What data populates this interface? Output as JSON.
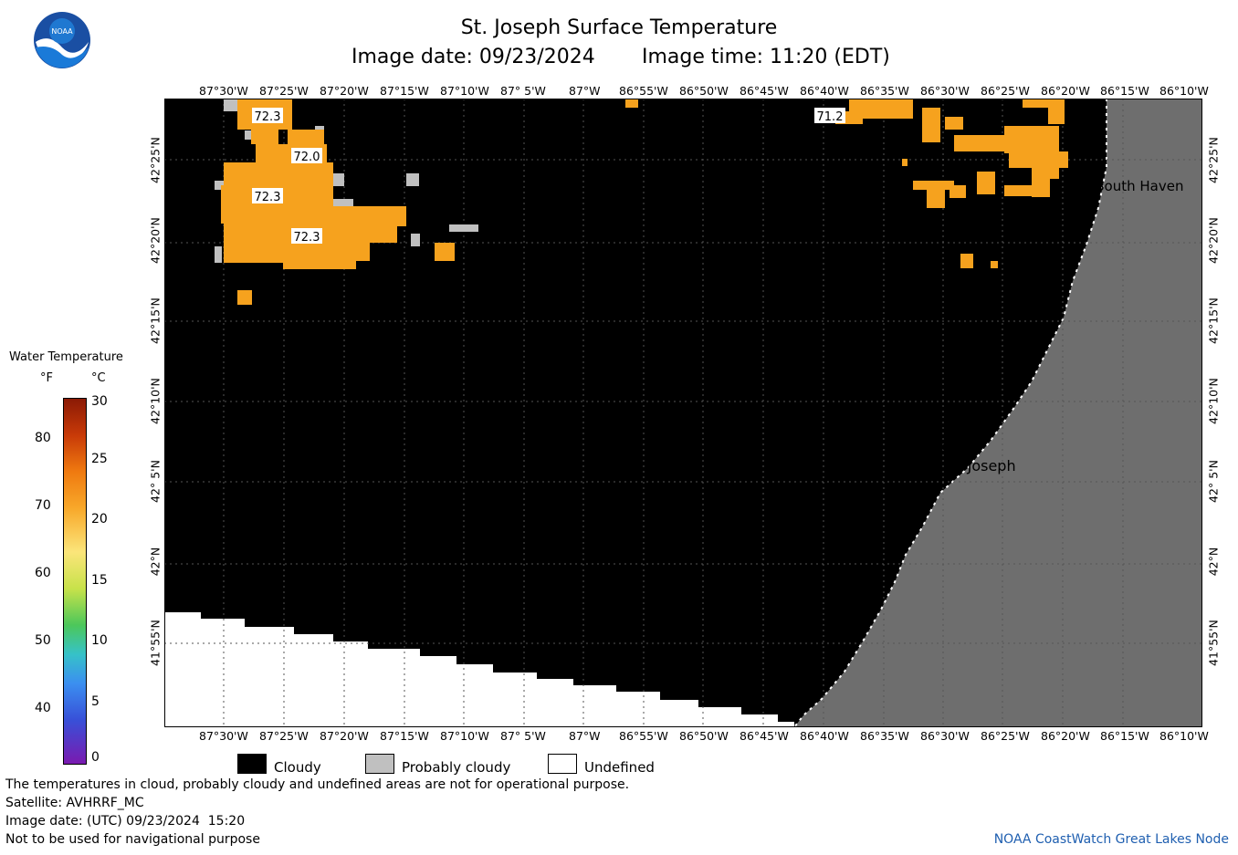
{
  "header": {
    "title": "St. Joseph Surface Temperature",
    "image_date_label": "Image date: 09/23/2024",
    "image_time_label": "Image time: 11:20 (EDT)"
  },
  "logo": {
    "text": "NOAA"
  },
  "map": {
    "lon_ticks": [
      "87°30'W",
      "87°25'W",
      "87°20'W",
      "87°15'W",
      "87°10'W",
      "87° 5'W",
      "87°W",
      "86°55'W",
      "86°50'W",
      "86°45'W",
      "86°40'W",
      "86°35'W",
      "86°30'W",
      "86°25'W",
      "86°20'W",
      "86°15'W",
      "86°10'W"
    ],
    "lat_ticks": [
      "42°25'N",
      "42°20'N",
      "42°15'N",
      "42°10'N",
      "42° 5'N",
      "42°N",
      "41°55'N"
    ],
    "temperature_labels": [
      "72.3",
      "72.0",
      "72.3",
      "72.3",
      "71.2"
    ],
    "places": [
      "South Haven",
      "St. Joseph"
    ],
    "colors": {
      "cloudy": "#000000",
      "probably_cloudy": "#c0c0c0",
      "land": "#6e6e6e",
      "undefined": "#ffffff",
      "warm_water": "#f6a21e"
    }
  },
  "legend": {
    "title": "Water Temperature",
    "unit_f": "°F",
    "unit_c": "°C",
    "f_ticks": [
      "80",
      "70",
      "60",
      "50",
      "40"
    ],
    "c_ticks": [
      "30",
      "25",
      "20",
      "15",
      "10",
      "5",
      "0"
    ],
    "keys": [
      "Cloudy",
      "Probably cloudy",
      "Undefined"
    ]
  },
  "footer": {
    "line1": "The temperatures in cloud, probably cloudy and undefined areas are not for operational purpose.",
    "line2": "Satellite: AVHRRF_MC",
    "line3": "Image date: (UTC) 09/23/2024  15:20",
    "line4": "Not to be used for navigational purpose",
    "credit": "NOAA CoastWatch Great Lakes Node"
  }
}
